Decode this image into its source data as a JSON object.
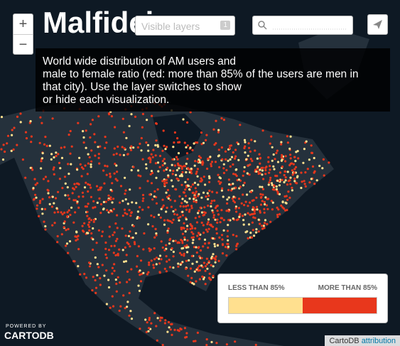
{
  "header": {
    "title": "Malfidei"
  },
  "layer_selector": {
    "label": "Visible layers",
    "count": "1"
  },
  "zoom": {
    "in": "+",
    "out": "−"
  },
  "description": {
    "lines": [
      "World wide distribution of AM users and",
      "male to female ratio (red: more than 85% of the users are men in",
      "that city). Use the layer switches to show",
      "or hide each visualization."
    ]
  },
  "legend": {
    "left": "LESS THAN 85%",
    "right": "MORE THAN 85%",
    "left_color": "#ffe08f",
    "right_color": "#e8371c"
  },
  "branding": {
    "powered": "POWERED BY",
    "name": "CARTODB"
  },
  "attribution": {
    "source": "CartoDB",
    "link": "attribution"
  }
}
